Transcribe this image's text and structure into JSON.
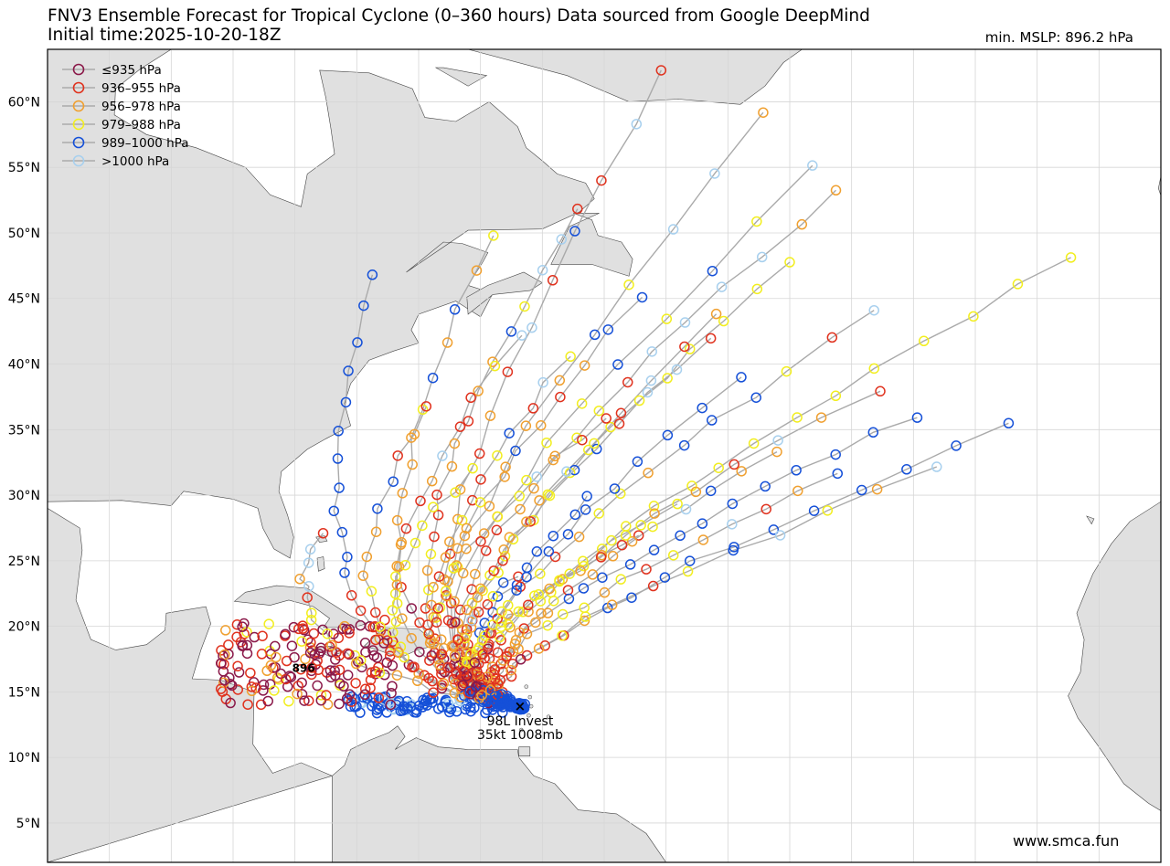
{
  "header": {
    "title_line1": "FNV3 Ensemble Forecast for Tropical Cyclone (0–360 hours) Data sourced from Google DeepMind",
    "title_line2": "Initial time:2025-10-20-18Z",
    "min_mslp": "min. MSLP: 896.2 hPa"
  },
  "watermark": "www.smca.fun",
  "storm": {
    "name_label": "98L Invest",
    "intensity_label": "35kt 1008mb",
    "min_marker_label": "896",
    "origin": [
      -61.8,
      13.9
    ]
  },
  "legend": [
    {
      "label": "≤935 hPa",
      "color": "#8b1a4a"
    },
    {
      "label": "936–955 hPa",
      "color": "#e0321e"
    },
    {
      "label": "956–978 hPa",
      "color": "#f0a030"
    },
    {
      "label": "979–988 hPa",
      "color": "#f2ee20"
    },
    {
      "label": "989–1000 hPa",
      "color": "#1550d8"
    },
    {
      "label": ">1000 hPa",
      "color": "#a8d0ee"
    }
  ],
  "map": {
    "lon_range": [
      -100,
      -10
    ],
    "lat_range": [
      2,
      64
    ],
    "lat_ticks": [
      5,
      10,
      15,
      20,
      25,
      30,
      35,
      40,
      45,
      50,
      55,
      60
    ],
    "lat_tick_labels": [
      "5°N",
      "10°N",
      "15°N",
      "20°N",
      "25°N",
      "30°N",
      "35°N",
      "40°N",
      "45°N",
      "50°N",
      "55°N",
      "60°N"
    ],
    "grid": true,
    "land_color": "#e0e0e0",
    "track_color": "#aaaaaa"
  },
  "tracks": [
    {
      "end": [
        -50,
        62.5
      ],
      "mid": [
        -78,
        18
      ]
    },
    {
      "end": [
        -42,
        59
      ],
      "mid": [
        -80,
        17
      ]
    },
    {
      "end": [
        -36,
        53.5
      ],
      "mid": [
        -79,
        19
      ]
    },
    {
      "end": [
        -17,
        48.2
      ],
      "mid": [
        -76,
        17
      ]
    },
    {
      "end": [
        -22,
        35.4
      ],
      "mid": [
        -72,
        16
      ]
    },
    {
      "end": [
        -36,
        31.5
      ],
      "mid": [
        -74,
        15
      ]
    },
    {
      "end": [
        -52,
        27
      ],
      "mid": [
        -73,
        16
      ]
    },
    {
      "end": [
        -57,
        52
      ],
      "mid": [
        -79,
        18
      ]
    },
    {
      "end": [
        -64,
        50
      ],
      "mid": [
        -80,
        19
      ]
    },
    {
      "end": [
        -74,
        47
      ],
      "mid": [
        -83,
        16
      ]
    },
    {
      "end": [
        -40,
        48
      ],
      "mid": [
        -77,
        17
      ]
    },
    {
      "end": [
        -46,
        42
      ],
      "mid": [
        -76,
        18
      ]
    },
    {
      "end": [
        -41,
        33.5
      ],
      "mid": [
        -70,
        17
      ]
    },
    {
      "end": [
        -33,
        38
      ],
      "mid": [
        -75,
        17
      ]
    },
    {
      "end": [
        -56,
        30
      ],
      "mid": [
        -72,
        15
      ]
    },
    {
      "end": [
        -62,
        24
      ],
      "mid": [
        -71,
        16
      ]
    },
    {
      "end": [
        -55,
        36
      ],
      "mid": [
        -79,
        17
      ]
    },
    {
      "end": [
        -66,
        32
      ],
      "mid": [
        -80,
        16
      ]
    },
    {
      "end": [
        -78,
        27
      ],
      "mid": [
        -84,
        17
      ]
    },
    {
      "end": [
        -30,
        36
      ],
      "mid": [
        -73,
        17
      ]
    },
    {
      "end": [
        -38,
        55
      ],
      "mid": [
        -80,
        18
      ]
    },
    {
      "end": [
        -46,
        44
      ],
      "mid": [
        -77,
        15
      ]
    },
    {
      "end": [
        -62,
        42
      ],
      "mid": [
        -81,
        18
      ]
    },
    {
      "end": [
        -58,
        40.5
      ],
      "mid": [
        -78,
        16
      ]
    },
    {
      "end": [
        -49,
        29.5
      ],
      "mid": [
        -75,
        15
      ]
    },
    {
      "end": [
        -28,
        32
      ],
      "mid": [
        -72,
        16
      ]
    },
    {
      "end": [
        -52,
        45
      ],
      "mid": [
        -79,
        16
      ]
    },
    {
      "end": [
        -69,
        37
      ],
      "mid": [
        -82,
        17
      ]
    },
    {
      "end": [
        -33,
        44
      ],
      "mid": [
        -75,
        18
      ]
    },
    {
      "end": [
        -44,
        39
      ],
      "mid": [
        -74,
        16
      ]
    }
  ]
}
